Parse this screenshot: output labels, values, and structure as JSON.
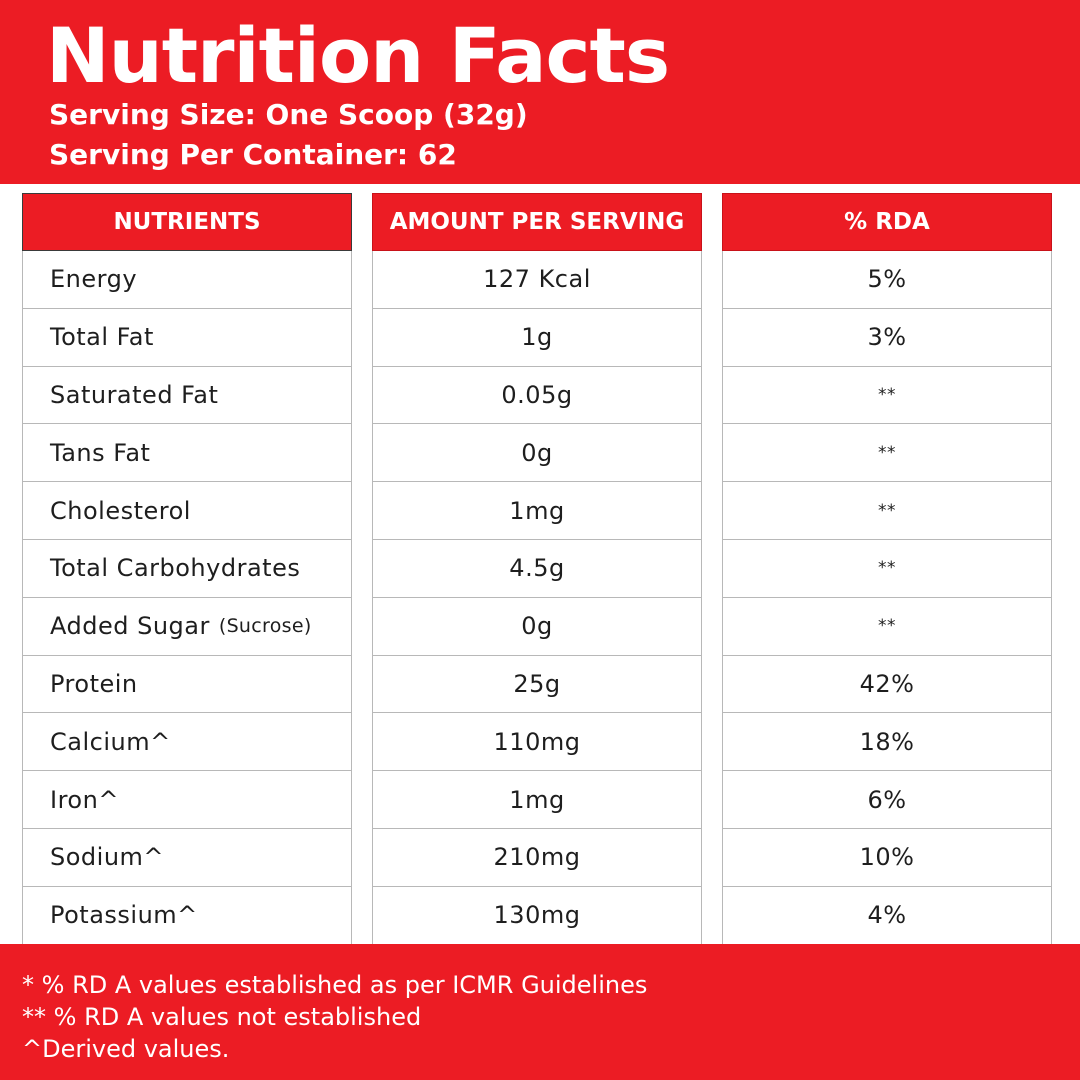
{
  "title": "Nutrition Facts",
  "serving_size": "Serving Size: One Scoop (32g)",
  "servings_per_container": "Serving Per Container: 62",
  "table": {
    "headers": [
      "NUTRIENTS",
      "AMOUNT PER SERVING",
      "% RDA"
    ],
    "rows": [
      {
        "nutrient": "Energy",
        "note": "",
        "amount": "127 Kcal",
        "rda": "5%"
      },
      {
        "nutrient": "Total Fat",
        "note": "",
        "amount": "1g",
        "rda": "3%"
      },
      {
        "nutrient": "Saturated Fat",
        "note": "",
        "amount": "0.05g",
        "rda": "**"
      },
      {
        "nutrient": "Tans Fat",
        "note": "",
        "amount": "0g",
        "rda": "**"
      },
      {
        "nutrient": "Cholesterol",
        "note": "",
        "amount": "1mg",
        "rda": "**"
      },
      {
        "nutrient": "Total Carbohydrates",
        "note": "",
        "amount": "4.5g",
        "rda": "**"
      },
      {
        "nutrient": "Added Sugar",
        "note": "(Sucrose)",
        "amount": "0g",
        "rda": "**"
      },
      {
        "nutrient": "Protein",
        "note": "",
        "amount": "25g",
        "rda": "42%"
      },
      {
        "nutrient": "Calcium^",
        "note": "",
        "amount": "110mg",
        "rda": "18%"
      },
      {
        "nutrient": "Iron^",
        "note": "",
        "amount": "1mg",
        "rda": "6%"
      },
      {
        "nutrient": "Sodium^",
        "note": "",
        "amount": "210mg",
        "rda": "10%"
      },
      {
        "nutrient": "Potassium^",
        "note": "",
        "amount": "130mg",
        "rda": "4%"
      }
    ]
  },
  "footnotes": [
    "* % RD A values established as per ICMR Guidelines",
    "** % RD A values not established",
    "^Derived values."
  ],
  "colors": {
    "accent": "#ec1c24",
    "text": "#1e1e1e",
    "border": "#b8b8b8"
  }
}
